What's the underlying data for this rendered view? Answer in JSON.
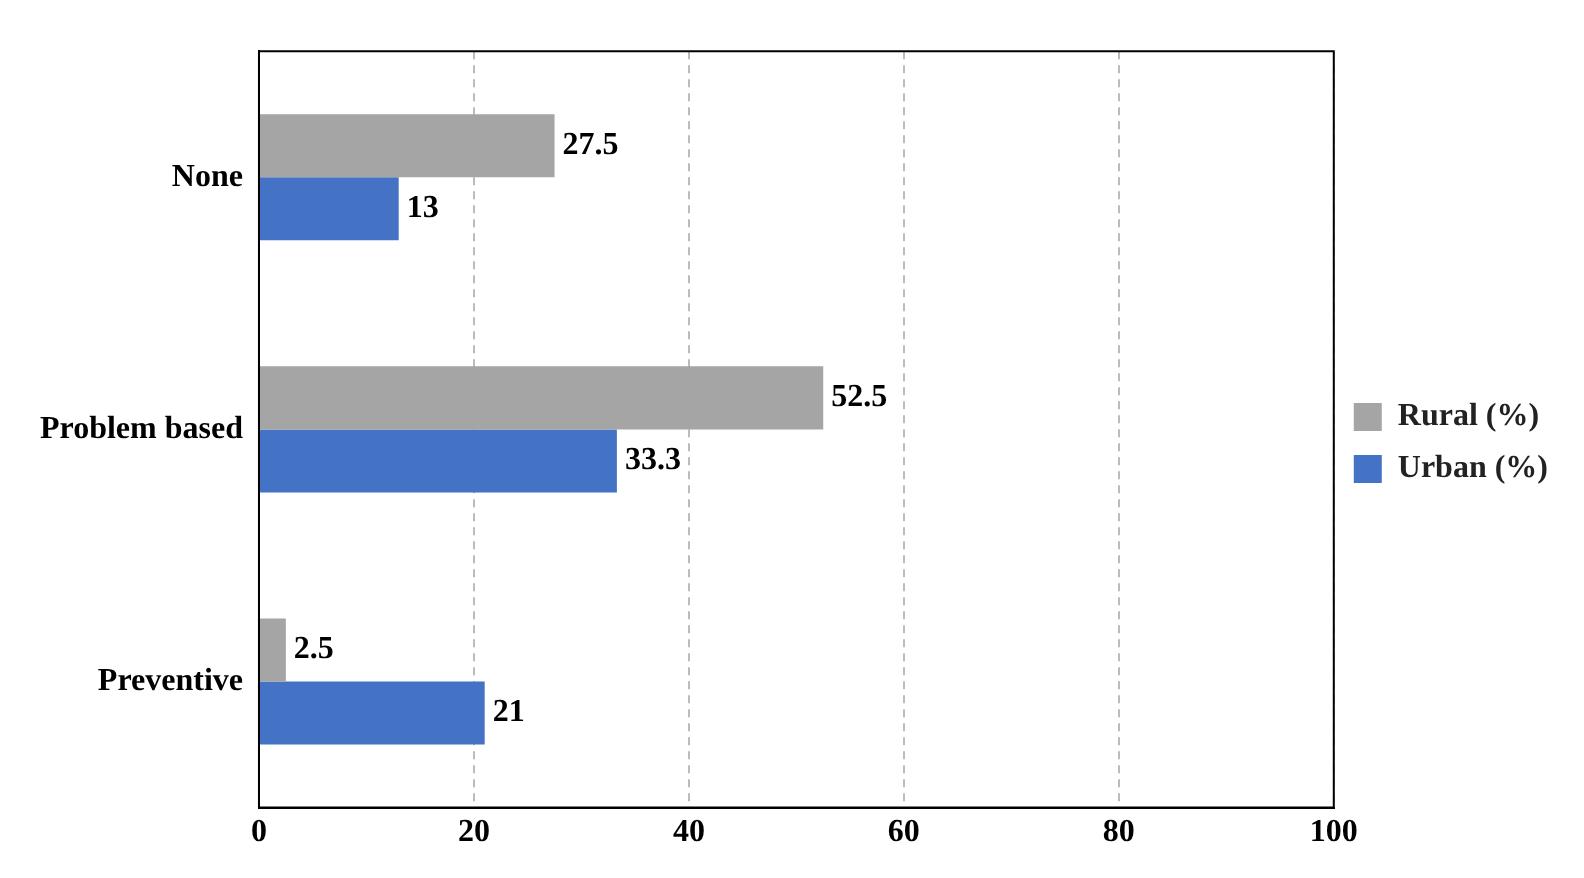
{
  "chart_data": {
    "type": "bar",
    "orientation": "horizontal",
    "categories": [
      "None",
      "Problem based",
      "Preventive"
    ],
    "series": [
      {
        "name": "Rural (%)",
        "color": "#a5a5a5",
        "values": [
          27.5,
          52.5,
          2.5
        ]
      },
      {
        "name": "Urban (%)",
        "color": "#4472c4",
        "values": [
          13,
          33.3,
          21
        ]
      }
    ],
    "xlim": [
      0,
      100
    ],
    "xticks": [
      0,
      20,
      40,
      60,
      80,
      100
    ],
    "grid": "x",
    "legend": "right",
    "data_labels": true
  }
}
